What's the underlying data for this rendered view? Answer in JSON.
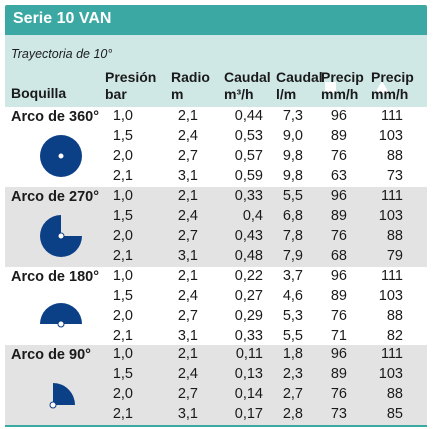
{
  "banner": {
    "title": "Serie 10 VAN",
    "color": "#3ba8a3"
  },
  "header": {
    "subtitle": "Trayectoria de 10°",
    "square_icon": "square-icon",
    "triangle_icon": "triangle-icon",
    "col_boquilla": "Boquilla",
    "col_presion_1": "Presión",
    "col_presion_2": "bar",
    "col_radio_1": "Radio",
    "col_radio_2": "m",
    "col_caudal_m3_1": "Caudal",
    "col_caudal_m3_2": "m³/h",
    "col_caudal_l_1": "Caudal",
    "col_caudal_l_2": "l/m",
    "col_precip_sq_1": "Precip",
    "col_precip_sq_2": "mm/h",
    "col_precip_tr_1": "Precip",
    "col_precip_tr_2": "mm/h",
    "header_band_color": "#cfe8e6"
  },
  "groups": [
    {
      "label": "Arco de 360°",
      "icon": "arc-360-icon",
      "rows": [
        [
          "1,0",
          "2,1",
          "0,44",
          "7,3",
          "96",
          "111"
        ],
        [
          "1,5",
          "2,4",
          "0,53",
          "9,0",
          "89",
          "103"
        ],
        [
          "2,0",
          "2,7",
          "0,57",
          "9,8",
          "76",
          "88"
        ],
        [
          "2,1",
          "3,1",
          "0,59",
          "9,8",
          "63",
          "73"
        ]
      ]
    },
    {
      "label": "Arco de 270°",
      "icon": "arc-270-icon",
      "rows": [
        [
          "1,0",
          "2,1",
          "0,33",
          "5,5",
          "96",
          "111"
        ],
        [
          "1,5",
          "2,4",
          "0,4",
          "6,8",
          "89",
          "103"
        ],
        [
          "2,0",
          "2,7",
          "0,43",
          "7,8",
          "76",
          "88"
        ],
        [
          "2,1",
          "3,1",
          "0,48",
          "7,9",
          "68",
          "79"
        ]
      ]
    },
    {
      "label": "Arco de 180°",
      "icon": "arc-180-icon",
      "rows": [
        [
          "1,0",
          "2,1",
          "0,22",
          "3,7",
          "96",
          "111"
        ],
        [
          "1,5",
          "2,4",
          "0,27",
          "4,6",
          "89",
          "103"
        ],
        [
          "2,0",
          "2,7",
          "0,29",
          "5,3",
          "76",
          "88"
        ],
        [
          "2,1",
          "3,1",
          "0,33",
          "5,5",
          "71",
          "82"
        ]
      ]
    },
    {
      "label": "Arco de 90°",
      "icon": "arc-90-icon",
      "rows": [
        [
          "1,0",
          "2,1",
          "0,11",
          "1,8",
          "96",
          "111"
        ],
        [
          "1,5",
          "2,4",
          "0,13",
          "2,3",
          "89",
          "103"
        ],
        [
          "2,0",
          "2,7",
          "0,14",
          "2,7",
          "76",
          "88"
        ],
        [
          "2,1",
          "3,1",
          "0,17",
          "2,8",
          "73",
          "85"
        ]
      ]
    }
  ],
  "colors": {
    "icon_fill": "#0b3f86",
    "row_shade": "#e3e3e3",
    "divider": "#3ba8a3"
  }
}
